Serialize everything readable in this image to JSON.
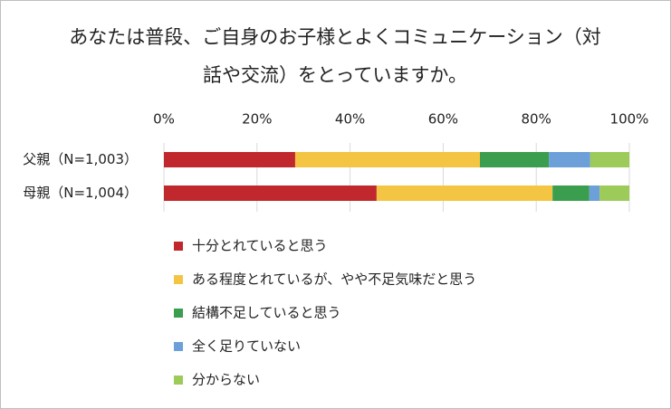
{
  "chart_data": {
    "type": "stacked-bar-horizontal",
    "title": [
      "あなたは普段、ご自身のお子様とよくコミュニケーション（対",
      "話や交流）をとっていますか。"
    ],
    "categories": [
      "父親（N=1,003）",
      "母親（N=1,004）"
    ],
    "series": [
      {
        "name": "十分とれていると思う",
        "color": "#c0282d",
        "values": [
          28.2,
          45.7
        ]
      },
      {
        "name": "ある程度とれているが、やや不足気味だと思う",
        "color": "#f4c542",
        "values": [
          39.7,
          37.8
        ]
      },
      {
        "name": "結構不足していると思う",
        "color": "#3a9e4e",
        "values": [
          14.8,
          7.9
        ]
      },
      {
        "name": "全く足りていない",
        "color": "#6d9fd8",
        "values": [
          8.9,
          2.2
        ]
      },
      {
        "name": "分からない",
        "color": "#9ccb5a",
        "values": [
          8.4,
          6.4
        ]
      }
    ],
    "xlim": [
      0,
      100
    ],
    "xticks": [
      {
        "value": 0,
        "label": "0%"
      },
      {
        "value": 20,
        "label": "20%"
      },
      {
        "value": 40,
        "label": "40%"
      },
      {
        "value": 60,
        "label": "60%"
      },
      {
        "value": 80,
        "label": "80%"
      },
      {
        "value": 100,
        "label": "100%"
      }
    ],
    "grid": true
  }
}
